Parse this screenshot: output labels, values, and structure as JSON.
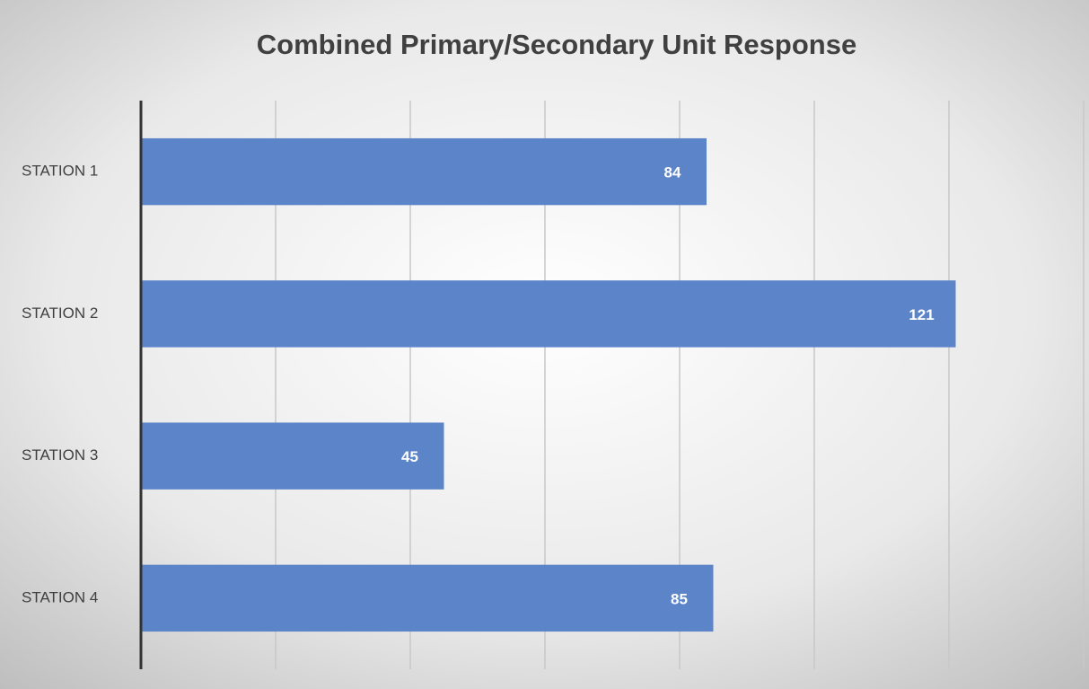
{
  "chart_data": {
    "type": "bar",
    "orientation": "horizontal",
    "title": "Combined Primary/Secondary Unit Response",
    "categories": [
      "STATION 1",
      "STATION 2",
      "STATION 3",
      "STATION 4"
    ],
    "values": [
      84,
      121,
      45,
      85
    ],
    "color": "#5b84c9",
    "xlim": [
      0,
      140
    ],
    "xticks": [
      0,
      20,
      40,
      60,
      80,
      100,
      120,
      140
    ],
    "grid": true
  }
}
